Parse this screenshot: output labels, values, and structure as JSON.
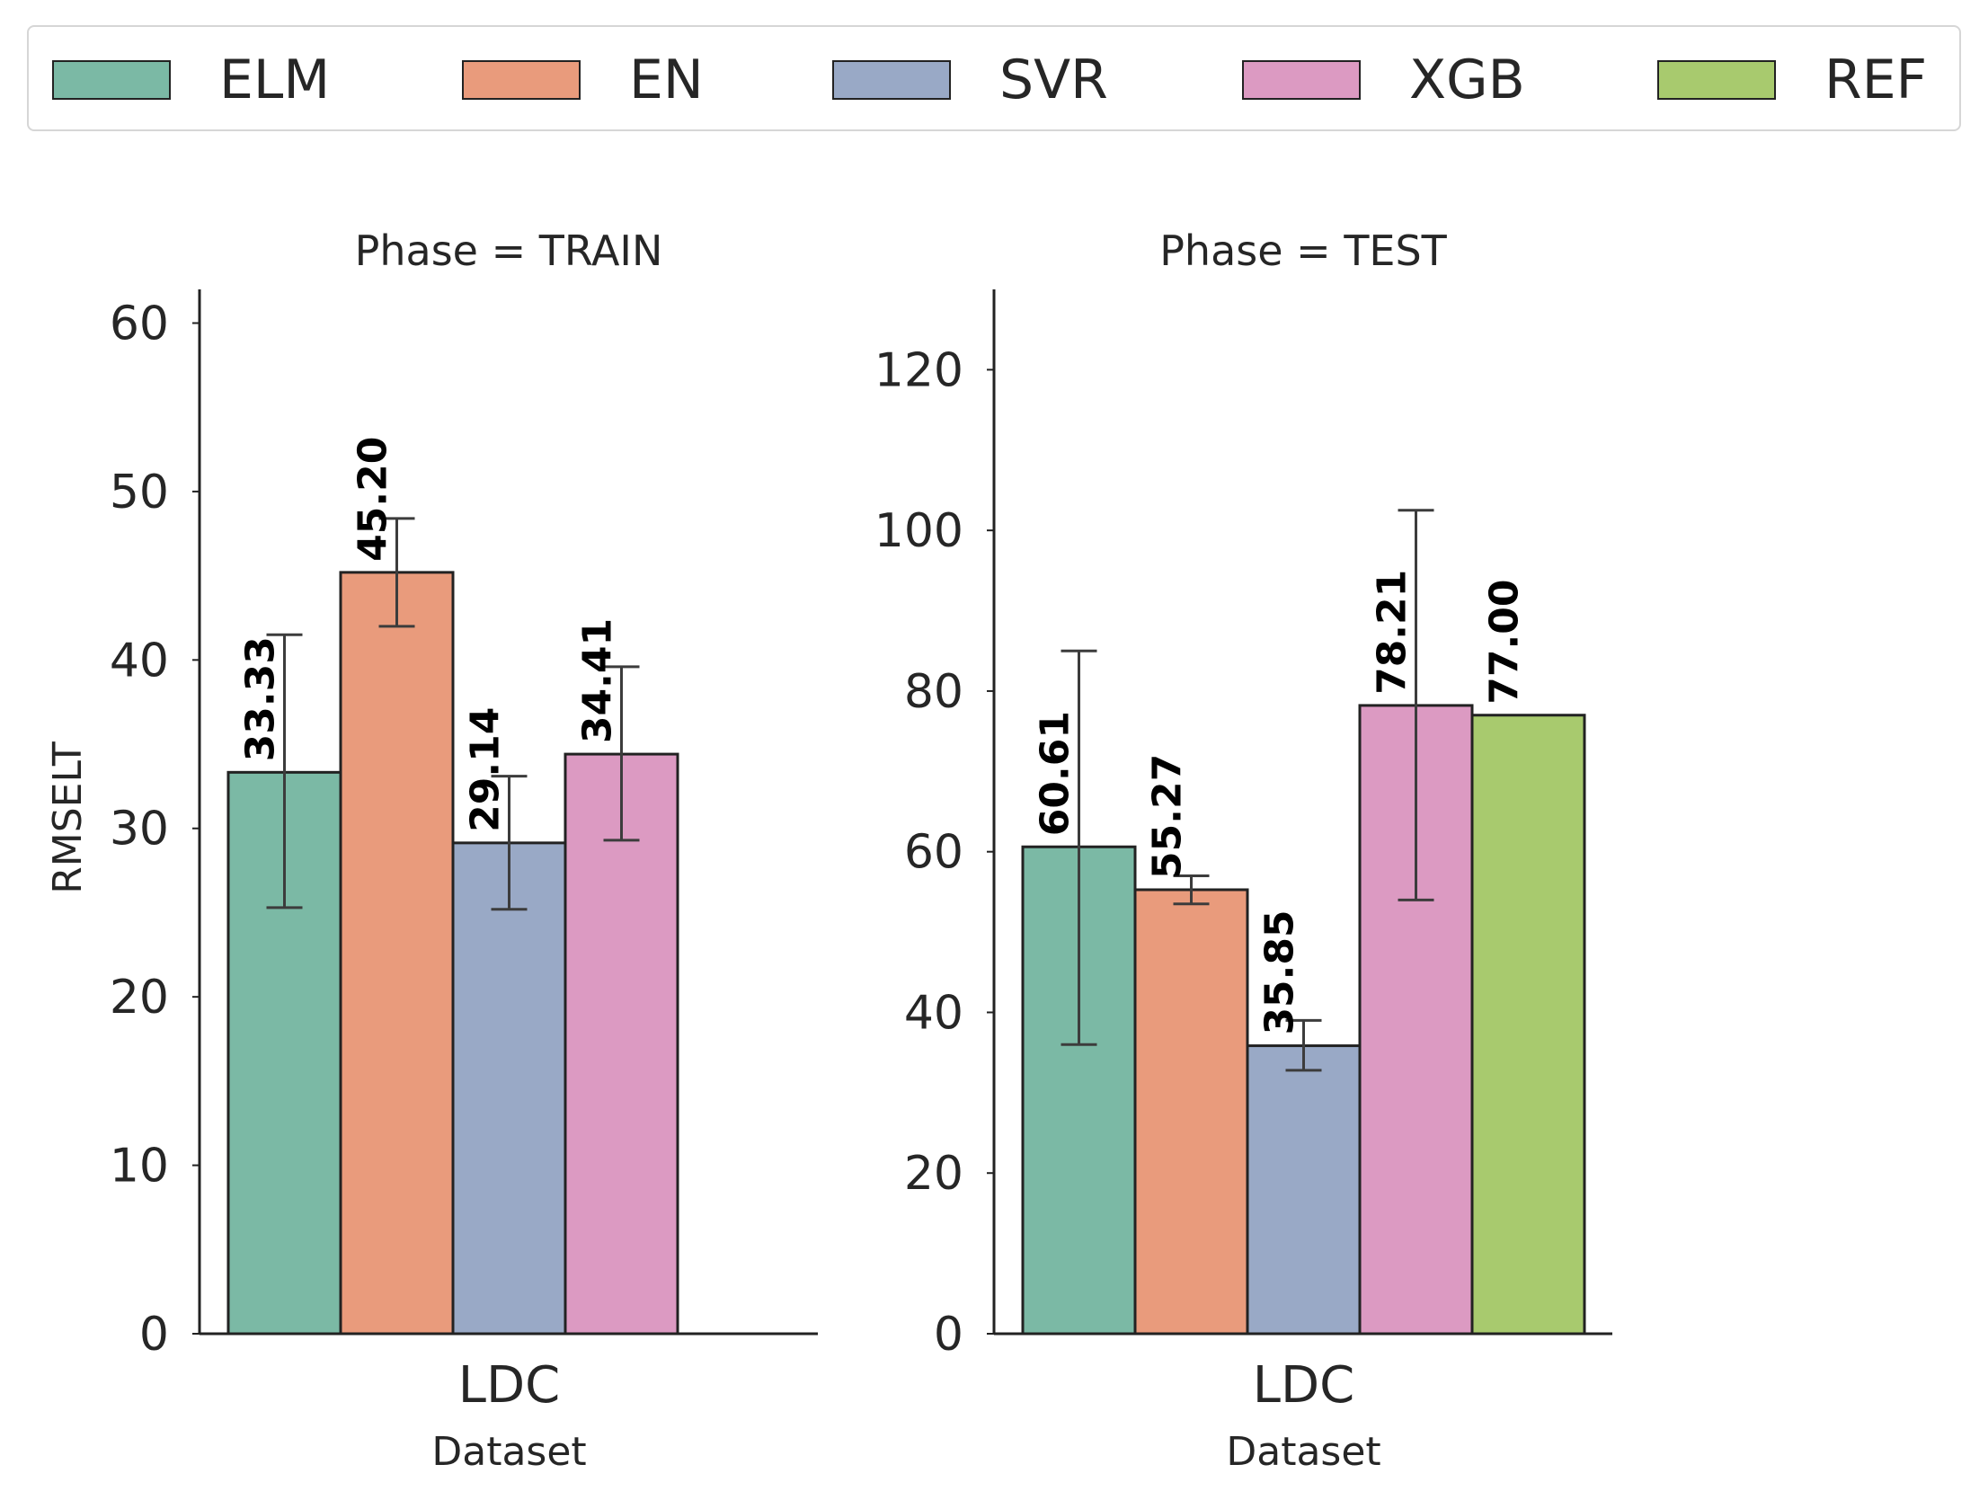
{
  "legend": [
    {
      "label": "ELM",
      "color": "#7bb9a5"
    },
    {
      "label": "EN",
      "color": "#e99b7c"
    },
    {
      "label": "SVR",
      "color": "#99a9c6"
    },
    {
      "label": "XGB",
      "color": "#dc9ac2"
    },
    {
      "label": "REF",
      "color": "#a8ca6e"
    }
  ],
  "chart_data": [
    {
      "type": "bar",
      "title": "Phase = TRAIN",
      "xlabel": "Dataset",
      "ylabel": "RMSELT",
      "categories": [
        "LDC"
      ],
      "ylim": [
        0,
        62
      ],
      "yticks": [
        0,
        10,
        20,
        30,
        40,
        50,
        60
      ],
      "grid": false,
      "series": [
        {
          "name": "ELM",
          "values": [
            33.33
          ],
          "label": "33.33",
          "err": [
            25.3,
            41.5
          ],
          "color": "#7bb9a5"
        },
        {
          "name": "EN",
          "values": [
            45.2
          ],
          "label": "45.20",
          "err": [
            42.0,
            48.4
          ],
          "color": "#e99b7c"
        },
        {
          "name": "SVR",
          "values": [
            29.14
          ],
          "label": "29.14",
          "err": [
            25.2,
            33.1
          ],
          "color": "#99a9c6"
        },
        {
          "name": "XGB",
          "values": [
            34.41
          ],
          "label": "34.41",
          "err": [
            29.3,
            39.6
          ],
          "color": "#dc9ac2"
        },
        {
          "name": "REF",
          "values": [
            null
          ],
          "label": "",
          "err": null,
          "color": "#a8ca6e"
        }
      ]
    },
    {
      "type": "bar",
      "title": "Phase = TEST",
      "xlabel": "Dataset",
      "ylabel": "",
      "categories": [
        "LDC"
      ],
      "ylim": [
        0,
        130
      ],
      "yticks": [
        0,
        20,
        40,
        60,
        80,
        100,
        120
      ],
      "grid": false,
      "series": [
        {
          "name": "ELM",
          "values": [
            60.61
          ],
          "label": "60.61",
          "err": [
            36.0,
            85.0
          ],
          "color": "#7bb9a5"
        },
        {
          "name": "EN",
          "values": [
            55.27
          ],
          "label": "55.27",
          "err": [
            53.5,
            57.0
          ],
          "color": "#e99b7c"
        },
        {
          "name": "SVR",
          "values": [
            35.85
          ],
          "label": "35.85",
          "err": [
            32.8,
            39.0
          ],
          "color": "#99a9c6"
        },
        {
          "name": "XGB",
          "values": [
            78.21
          ],
          "label": "78.21",
          "err": [
            54.0,
            102.5
          ],
          "color": "#dc9ac2"
        },
        {
          "name": "REF",
          "values": [
            77.0
          ],
          "label": "77.00",
          "err": null,
          "color": "#a8ca6e"
        }
      ]
    }
  ]
}
